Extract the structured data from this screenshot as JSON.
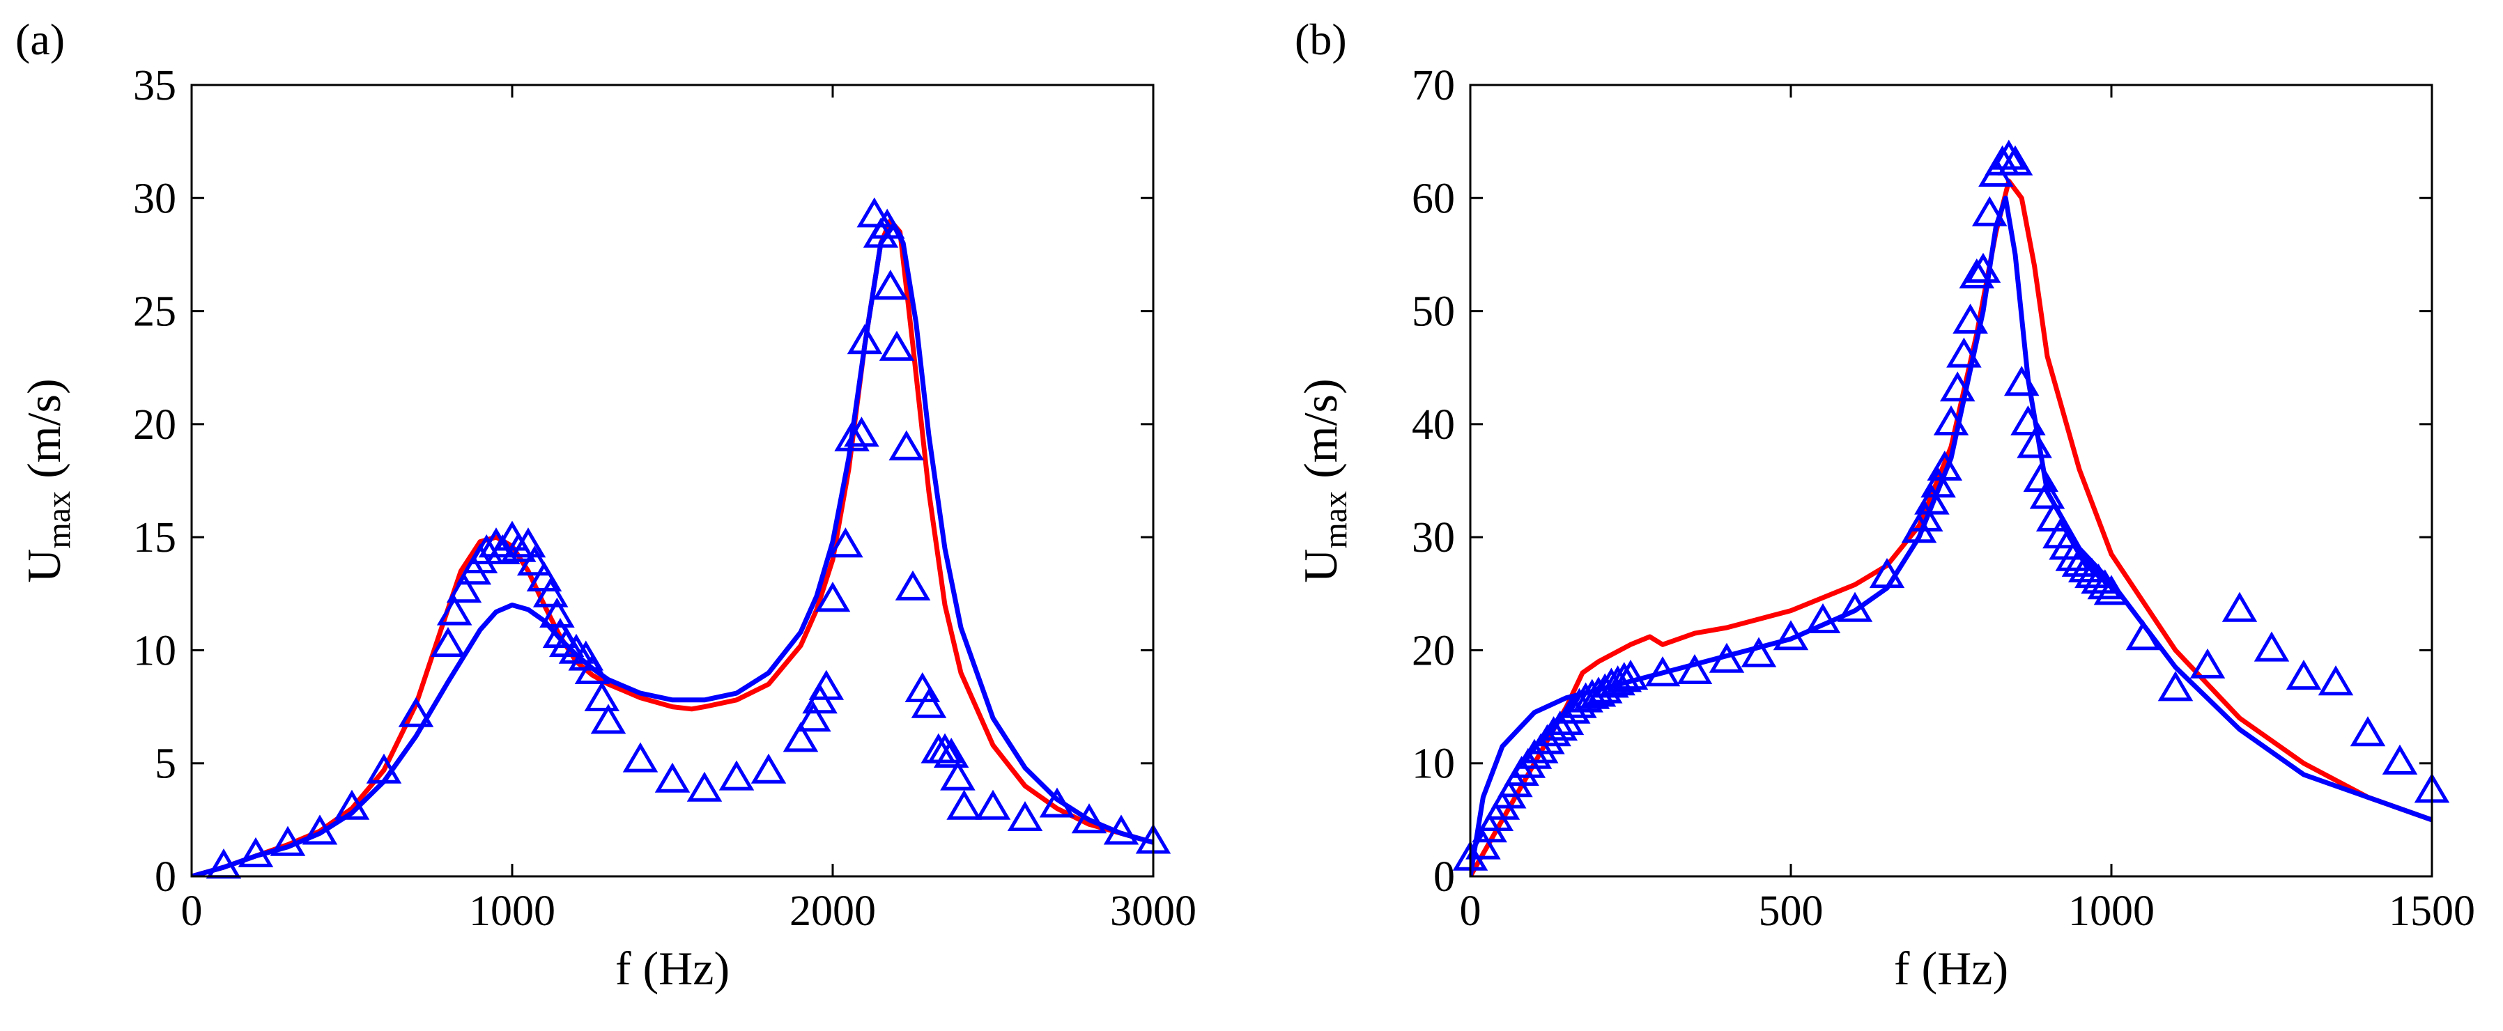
{
  "chart_data": [
    {
      "type": "line",
      "panel_label": "(a)",
      "xlabel": "f (Hz)",
      "ylabel_main": "U",
      "ylabel_sub": "max",
      "ylabel_unit": "(m/s)",
      "xlim": [
        0,
        3000
      ],
      "ylim": [
        0,
        35
      ],
      "xticks": [
        0,
        1000,
        2000,
        3000
      ],
      "yticks": [
        0,
        5,
        10,
        15,
        20,
        25,
        30,
        35
      ],
      "grid": false,
      "series": [
        {
          "name": "red-line",
          "kind": "line",
          "color": "#ff0000",
          "x": [
            0,
            100,
            200,
            300,
            400,
            500,
            600,
            700,
            780,
            840,
            900,
            950,
            1000,
            1050,
            1100,
            1150,
            1200,
            1250,
            1300,
            1400,
            1500,
            1560,
            1600,
            1700,
            1800,
            1900,
            1950,
            2000,
            2050,
            2100,
            2150,
            2180,
            2210,
            2250,
            2300,
            2350,
            2400,
            2500,
            2600,
            2700,
            2800,
            2900,
            3000
          ],
          "y": [
            0,
            0.4,
            0.9,
            1.4,
            2.0,
            3.0,
            4.7,
            7.6,
            11.0,
            13.5,
            14.8,
            15.0,
            14.6,
            13.5,
            12.0,
            10.6,
            9.5,
            8.9,
            8.5,
            7.9,
            7.5,
            7.4,
            7.5,
            7.8,
            8.5,
            10.2,
            11.8,
            14.0,
            18.0,
            23.5,
            28.0,
            29.0,
            28.5,
            23.5,
            17.0,
            12.0,
            9.0,
            5.8,
            4.0,
            3.0,
            2.3,
            1.9,
            1.5
          ]
        },
        {
          "name": "blue-line",
          "kind": "line",
          "color": "#0000ff",
          "x": [
            0,
            100,
            200,
            300,
            400,
            500,
            600,
            700,
            800,
            900,
            950,
            1000,
            1050,
            1100,
            1150,
            1200,
            1250,
            1300,
            1400,
            1500,
            1600,
            1700,
            1800,
            1900,
            1950,
            2000,
            2050,
            2100,
            2150,
            2190,
            2220,
            2260,
            2300,
            2350,
            2400,
            2500,
            2600,
            2700,
            2800,
            2900,
            3000
          ],
          "y": [
            0,
            0.4,
            0.9,
            1.3,
            1.9,
            2.8,
            4.2,
            6.2,
            8.6,
            10.9,
            11.7,
            12.0,
            11.8,
            11.3,
            10.5,
            9.8,
            9.2,
            8.7,
            8.1,
            7.8,
            7.8,
            8.1,
            9.0,
            10.8,
            12.4,
            14.8,
            18.5,
            23.5,
            28.0,
            28.8,
            28.0,
            24.5,
            19.5,
            14.5,
            11.0,
            7.0,
            4.8,
            3.4,
            2.5,
            1.9,
            1.5
          ]
        },
        {
          "name": "triangle-markers",
          "kind": "marker",
          "color": "#0000ff",
          "x": [
            100,
            200,
            300,
            400,
            500,
            600,
            700,
            800,
            820,
            850,
            880,
            900,
            920,
            950,
            970,
            1000,
            1020,
            1050,
            1070,
            1100,
            1120,
            1140,
            1150,
            1170,
            1200,
            1230,
            1250,
            1280,
            1300,
            1400,
            1500,
            1600,
            1700,
            1800,
            1900,
            1940,
            1960,
            1980,
            2000,
            2040,
            2060,
            2090,
            2100,
            2130,
            2150,
            2170,
            2180,
            2200,
            2230,
            2250,
            2280,
            2300,
            2330,
            2350,
            2370,
            2390,
            2410,
            2500,
            2600,
            2700,
            2800,
            2900,
            3000
          ],
          "y": [
            0.4,
            0.9,
            1.4,
            1.9,
            3.0,
            4.6,
            7.1,
            10.2,
            11.6,
            12.6,
            13.4,
            13.9,
            14.3,
            14.6,
            14.3,
            14.9,
            14.4,
            14.6,
            13.8,
            13.1,
            12.4,
            11.5,
            10.6,
            10.2,
            9.9,
            9.6,
            9.0,
            7.8,
            6.8,
            5.1,
            4.2,
            3.8,
            4.3,
            4.6,
            6.0,
            6.9,
            7.7,
            8.3,
            12.2,
            14.6,
            19.3,
            19.5,
            23.6,
            29.2,
            28.3,
            28.7,
            26.0,
            23.3,
            18.9,
            12.7,
            8.2,
            7.5,
            5.5,
            5.5,
            5.3,
            4.3,
            3.0,
            3.0,
            2.5,
            3.1,
            2.4,
            1.9,
            1.5
          ]
        }
      ]
    },
    {
      "type": "line",
      "panel_label": "(b)",
      "xlabel": "f (Hz)",
      "ylabel_main": "U",
      "ylabel_sub": "max",
      "ylabel_unit": "(m/s)",
      "xlim": [
        0,
        1500
      ],
      "ylim": [
        0,
        70
      ],
      "xticks": [
        0,
        500,
        1000,
        1500
      ],
      "yticks": [
        0,
        10,
        20,
        30,
        40,
        50,
        60,
        70
      ],
      "grid": false,
      "series": [
        {
          "name": "red-line",
          "kind": "line",
          "color": "#ff0000",
          "x": [
            0,
            20,
            50,
            100,
            150,
            175,
            200,
            250,
            280,
            300,
            350,
            400,
            500,
            600,
            650,
            700,
            750,
            790,
            820,
            840,
            860,
            880,
            900,
            950,
            1000,
            1100,
            1200,
            1300,
            1400,
            1500
          ],
          "y": [
            0,
            2,
            5,
            10,
            15,
            18,
            19,
            20.5,
            21.2,
            20.5,
            21.5,
            22,
            23.5,
            25.8,
            27.5,
            31,
            38,
            48,
            57,
            61.5,
            60,
            54,
            46,
            36,
            28.5,
            20,
            14,
            10,
            7,
            5
          ]
        },
        {
          "name": "blue-line",
          "kind": "line",
          "color": "#0000ff",
          "x": [
            0,
            20,
            50,
            100,
            150,
            200,
            300,
            400,
            500,
            600,
            650,
            700,
            750,
            800,
            820,
            835,
            850,
            870,
            900,
            950,
            1000,
            1100,
            1200,
            1300,
            1400,
            1500
          ],
          "y": [
            0,
            7,
            11.5,
            14.5,
            15.8,
            16.5,
            18,
            19.5,
            21,
            23.5,
            25.5,
            30,
            37,
            50,
            57.5,
            60,
            55,
            44,
            34,
            29,
            26,
            18.5,
            13,
            9,
            7,
            5
          ]
        },
        {
          "name": "triangle-markers",
          "kind": "marker",
          "color": "#0000ff",
          "x": [
            0,
            20,
            30,
            40,
            50,
            60,
            70,
            80,
            90,
            100,
            110,
            120,
            130,
            140,
            150,
            160,
            170,
            180,
            190,
            200,
            210,
            220,
            230,
            240,
            250,
            300,
            350,
            400,
            450,
            500,
            550,
            600,
            650,
            700,
            710,
            720,
            730,
            740,
            750,
            760,
            770,
            780,
            790,
            800,
            810,
            820,
            830,
            840,
            850,
            860,
            870,
            880,
            890,
            900,
            910,
            920,
            930,
            940,
            950,
            960,
            970,
            980,
            990,
            1000,
            1050,
            1100,
            1150,
            1200,
            1250,
            1300,
            1350,
            1400,
            1450,
            1500
          ],
          "y": [
            1.5,
            2.5,
            4,
            5,
            6,
            7,
            8,
            9,
            9.7,
            10.5,
            11,
            11.8,
            12.5,
            13,
            13.5,
            14.5,
            15,
            15.5,
            15.8,
            16,
            16.3,
            16.8,
            17,
            17.3,
            17.5,
            17.8,
            18,
            19,
            19.5,
            21,
            22.5,
            23.5,
            26.5,
            30.5,
            31.5,
            33,
            34.5,
            36,
            40,
            43,
            46,
            49,
            53,
            53.5,
            58.5,
            62,
            63,
            63.5,
            63,
            43.5,
            40,
            38,
            35,
            33.5,
            31.5,
            30,
            29,
            28,
            27.5,
            27,
            26.5,
            26,
            25.5,
            25,
            21,
            16.5,
            18.5,
            23.5,
            20,
            17.5,
            17,
            12.5,
            10,
            7.5
          ]
        }
      ]
    }
  ]
}
